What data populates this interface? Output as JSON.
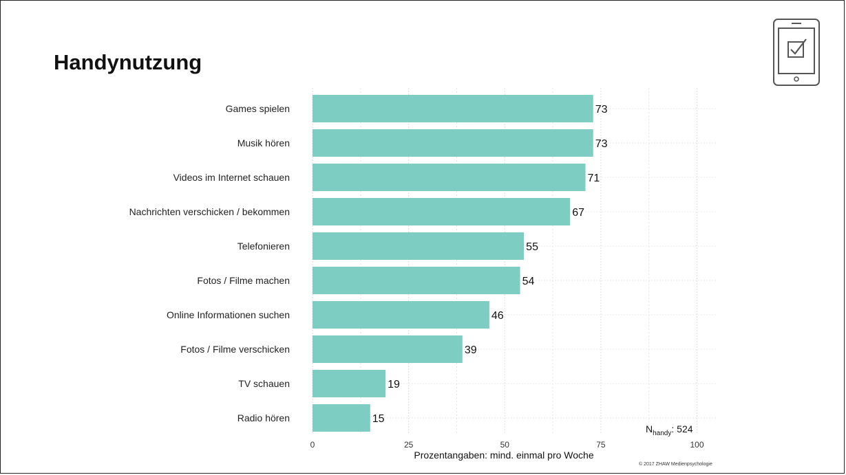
{
  "slide": {
    "title": "Handynutzung",
    "icon": "tablet-checkbox-icon",
    "copyright": "© 2017 ZHAW Medienpsychologie"
  },
  "sample": {
    "symbol": "N",
    "subscript": "handy",
    "value_text": ": 524"
  },
  "chart_data": {
    "type": "bar",
    "orientation": "horizontal",
    "categories": [
      "Games spielen",
      "Musik hören",
      "Videos im Internet schauen",
      "Nachrichten verschicken / bekommen",
      "Telefonieren",
      "Fotos / Filme machen",
      "Online Informationen suchen",
      "Fotos / Filme verschicken",
      "TV schauen",
      "Radio hören"
    ],
    "values": [
      73,
      73,
      71,
      67,
      55,
      54,
      46,
      39,
      19,
      15
    ],
    "data_labels": [
      "73",
      "73",
      "71",
      "67",
      "55",
      "54",
      "46",
      "39",
      "19",
      "15"
    ],
    "xlabel": "Prozentangaben: mind. einmal pro Woche",
    "xlim": [
      0,
      105
    ],
    "xticks": [
      0,
      25,
      50,
      75,
      100
    ],
    "grid": true,
    "bar_color": "#7ecdc3"
  }
}
